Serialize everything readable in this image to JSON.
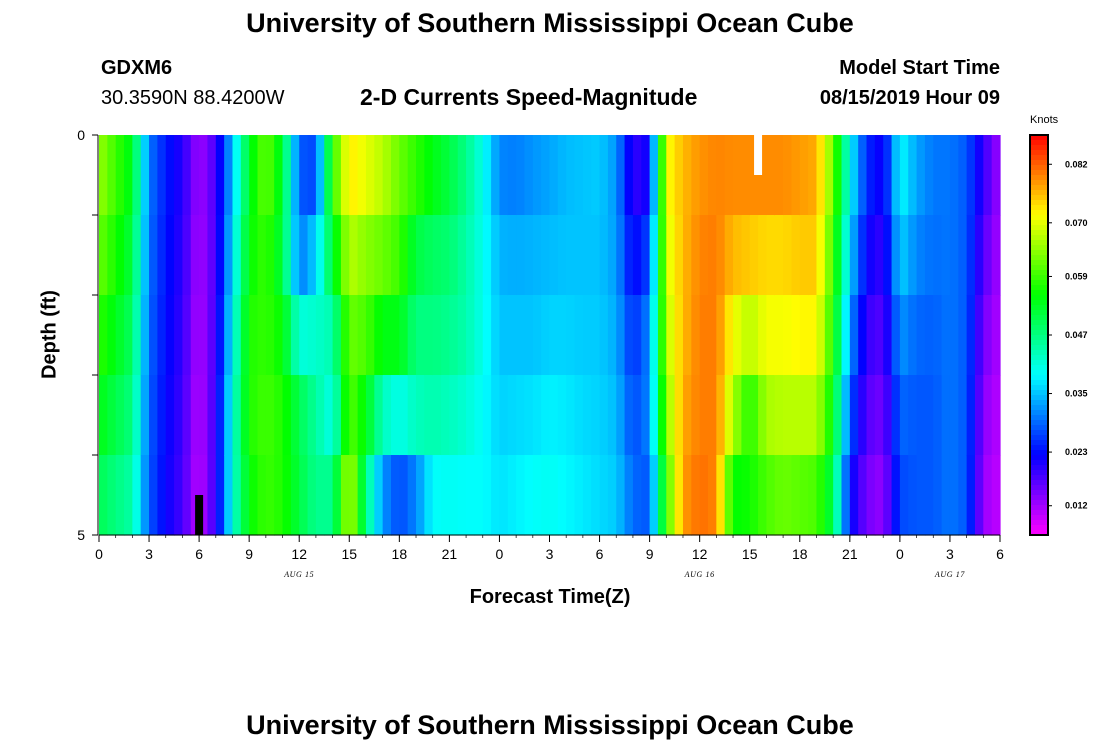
{
  "page": {
    "title_top": "University of Southern Mississippi Ocean Cube",
    "title_bottom": "University of Southern Mississippi Ocean Cube",
    "station": "GDXM6",
    "coords": "30.3590N 88.4200W",
    "plot_title": "2-D Currents Speed-Magnitude",
    "model_start_label": "Model Start Time",
    "model_start_value": "08/15/2019 Hour 09"
  },
  "chart_data": {
    "type": "heatmap",
    "title": "2-D Currents Speed-Magnitude",
    "xlabel": "Forecast Time(Z)",
    "ylabel": "Depth (ft)",
    "x_tick_labels": [
      "0",
      "3",
      "6",
      "9",
      "12",
      "15",
      "18",
      "21",
      "0",
      "3",
      "6",
      "9",
      "12",
      "15",
      "18",
      "21",
      "0",
      "3",
      "6"
    ],
    "x_tick_hours": [
      0,
      3,
      6,
      9,
      12,
      15,
      18,
      21,
      24,
      27,
      30,
      33,
      36,
      39,
      42,
      45,
      48,
      51,
      54
    ],
    "x_range_hours": [
      0,
      54
    ],
    "date_labels": [
      {
        "text": "AUG 15",
        "hour": 12
      },
      {
        "text": "AUG 16",
        "hour": 36
      },
      {
        "text": "AUG 17",
        "hour": 51
      }
    ],
    "y_tick_labels": [
      "0",
      "5"
    ],
    "y_range": [
      0,
      5
    ],
    "depth_levels": [
      0,
      1,
      2,
      3,
      4,
      5
    ],
    "colorbar": {
      "unit": "Knots",
      "range": [
        0.006,
        0.088
      ],
      "tick_labels": [
        "0.082",
        "0.070",
        "0.059",
        "0.047",
        "0.035",
        "0.023",
        "0.012"
      ],
      "tick_values": [
        0.082,
        0.07,
        0.059,
        0.047,
        0.035,
        0.023,
        0.012
      ],
      "colormap": "rainbow magenta-blue-cyan-green-yellow-red"
    },
    "missing_cells": [
      {
        "hour": 39.5,
        "band": 0,
        "color": "#ffffff"
      },
      {
        "hour": 6,
        "band": 5,
        "color": "#000000"
      }
    ],
    "column_profiles": [
      {
        "h": 0,
        "v": [
          0.066,
          0.064,
          0.06,
          0.056,
          0.052,
          0.048
        ]
      },
      {
        "h": 1,
        "v": [
          0.06,
          0.058,
          0.055,
          0.052,
          0.049,
          0.045
        ]
      },
      {
        "h": 2,
        "v": [
          0.054,
          0.052,
          0.05,
          0.048,
          0.046,
          0.043
        ]
      },
      {
        "h": 3,
        "v": [
          0.03,
          0.03,
          0.029,
          0.029,
          0.028,
          0.028
        ]
      },
      {
        "h": 4,
        "v": [
          0.024,
          0.024,
          0.023,
          0.023,
          0.022,
          0.022
        ]
      },
      {
        "h": 5,
        "v": [
          0.02,
          0.02,
          0.019,
          0.019,
          0.018,
          0.018
        ]
      },
      {
        "h": 6,
        "v": [
          0.012,
          0.012,
          0.011,
          0.011,
          0.01,
          0.01
        ]
      },
      {
        "h": 7,
        "v": [
          0.018,
          0.018,
          0.018,
          0.019,
          0.019,
          0.019
        ]
      },
      {
        "h": 8,
        "v": [
          0.034,
          0.036,
          0.038,
          0.04,
          0.042,
          0.04
        ]
      },
      {
        "h": 9,
        "v": [
          0.052,
          0.054,
          0.056,
          0.058,
          0.056,
          0.054
        ]
      },
      {
        "h": 10,
        "v": [
          0.064,
          0.06,
          0.058,
          0.059,
          0.06,
          0.058
        ]
      },
      {
        "h": 11,
        "v": [
          0.056,
          0.048,
          0.054,
          0.056,
          0.058,
          0.056
        ]
      },
      {
        "h": 12,
        "v": [
          0.03,
          0.026,
          0.034,
          0.048,
          0.052,
          0.05
        ]
      },
      {
        "h": 13,
        "v": [
          0.022,
          0.032,
          0.04,
          0.044,
          0.046,
          0.046
        ]
      },
      {
        "h": 14,
        "v": [
          0.06,
          0.056,
          0.048,
          0.04,
          0.04,
          0.052
        ]
      },
      {
        "h": 15,
        "v": [
          0.076,
          0.07,
          0.064,
          0.06,
          0.062,
          0.074
        ]
      },
      {
        "h": 16,
        "v": [
          0.074,
          0.066,
          0.062,
          0.058,
          0.05,
          0.044
        ]
      },
      {
        "h": 17,
        "v": [
          0.07,
          0.064,
          0.06,
          0.048,
          0.038,
          0.026
        ]
      },
      {
        "h": 18,
        "v": [
          0.064,
          0.06,
          0.058,
          0.05,
          0.03,
          0.024
        ]
      },
      {
        "h": 19,
        "v": [
          0.062,
          0.054,
          0.048,
          0.046,
          0.04,
          0.022
        ]
      },
      {
        "h": 20,
        "v": [
          0.056,
          0.052,
          0.046,
          0.048,
          0.04,
          0.038
        ]
      },
      {
        "h": 21,
        "v": [
          0.052,
          0.05,
          0.046,
          0.046,
          0.04,
          0.039
        ]
      },
      {
        "h": 22,
        "v": [
          0.048,
          0.045,
          0.044,
          0.044,
          0.039,
          0.039
        ]
      },
      {
        "h": 23,
        "v": [
          0.04,
          0.04,
          0.04,
          0.04,
          0.038,
          0.04
        ]
      },
      {
        "h": 24,
        "v": [
          0.028,
          0.034,
          0.034,
          0.036,
          0.036,
          0.038
        ]
      },
      {
        "h": 25,
        "v": [
          0.028,
          0.033,
          0.034,
          0.036,
          0.037,
          0.039
        ]
      },
      {
        "h": 26,
        "v": [
          0.03,
          0.034,
          0.034,
          0.036,
          0.038,
          0.04
        ]
      },
      {
        "h": 27,
        "v": [
          0.032,
          0.034,
          0.035,
          0.037,
          0.039,
          0.04
        ]
      },
      {
        "h": 28,
        "v": [
          0.034,
          0.035,
          0.035,
          0.037,
          0.038,
          0.039
        ]
      },
      {
        "h": 29,
        "v": [
          0.035,
          0.035,
          0.035,
          0.036,
          0.037,
          0.038
        ]
      },
      {
        "h": 30,
        "v": [
          0.036,
          0.035,
          0.035,
          0.036,
          0.036,
          0.037
        ]
      },
      {
        "h": 31,
        "v": [
          0.032,
          0.032,
          0.033,
          0.034,
          0.035,
          0.036
        ]
      },
      {
        "h": 32,
        "v": [
          0.018,
          0.02,
          0.024,
          0.026,
          0.028,
          0.03
        ]
      },
      {
        "h": 33,
        "v": [
          0.02,
          0.024,
          0.03,
          0.032,
          0.03,
          0.026
        ]
      },
      {
        "h": 34,
        "v": [
          0.072,
          0.07,
          0.068,
          0.066,
          0.062,
          0.056
        ]
      },
      {
        "h": 35,
        "v": [
          0.076,
          0.076,
          0.076,
          0.076,
          0.078,
          0.078
        ]
      },
      {
        "h": 36,
        "v": [
          0.078,
          0.079,
          0.08,
          0.08,
          0.08,
          0.082
        ]
      },
      {
        "h": 37,
        "v": [
          0.079,
          0.08,
          0.08,
          0.08,
          0.08,
          0.079
        ]
      },
      {
        "h": 38,
        "v": [
          0.08,
          0.078,
          0.074,
          0.068,
          0.064,
          0.046
        ]
      },
      {
        "h": 39,
        "v": [
          0.08,
          0.078,
          0.072,
          0.062,
          0.052,
          0.06
        ]
      },
      {
        "h": 40,
        "v": [
          0.082,
          0.076,
          0.072,
          0.07,
          0.062,
          0.058
        ]
      },
      {
        "h": 41,
        "v": [
          0.082,
          0.076,
          0.072,
          0.07,
          0.064,
          0.06
        ]
      },
      {
        "h": 42,
        "v": [
          0.08,
          0.076,
          0.074,
          0.07,
          0.064,
          0.058
        ]
      },
      {
        "h": 43,
        "v": [
          0.078,
          0.076,
          0.074,
          0.07,
          0.064,
          0.056
        ]
      },
      {
        "h": 44,
        "v": [
          0.064,
          0.06,
          0.058,
          0.056,
          0.052,
          0.048
        ]
      },
      {
        "h": 45,
        "v": [
          0.04,
          0.038,
          0.034,
          0.03,
          0.026,
          0.02
        ]
      },
      {
        "h": 46,
        "v": [
          0.026,
          0.024,
          0.02,
          0.018,
          0.016,
          0.014
        ]
      },
      {
        "h": 47,
        "v": [
          0.022,
          0.02,
          0.018,
          0.016,
          0.014,
          0.012
        ]
      },
      {
        "h": 48,
        "v": [
          0.04,
          0.038,
          0.034,
          0.03,
          0.028,
          0.026
        ]
      },
      {
        "h": 49,
        "v": [
          0.034,
          0.032,
          0.03,
          0.028,
          0.028,
          0.028
        ]
      },
      {
        "h": 50,
        "v": [
          0.03,
          0.03,
          0.029,
          0.028,
          0.028,
          0.028
        ]
      },
      {
        "h": 51,
        "v": [
          0.03,
          0.03,
          0.03,
          0.03,
          0.03,
          0.03
        ]
      },
      {
        "h": 52,
        "v": [
          0.028,
          0.028,
          0.028,
          0.028,
          0.028,
          0.028
        ]
      },
      {
        "h": 53,
        "v": [
          0.02,
          0.018,
          0.016,
          0.014,
          0.013,
          0.012
        ]
      },
      {
        "h": 54,
        "v": [
          0.012,
          0.012,
          0.011,
          0.011,
          0.01,
          0.01
        ]
      }
    ]
  }
}
